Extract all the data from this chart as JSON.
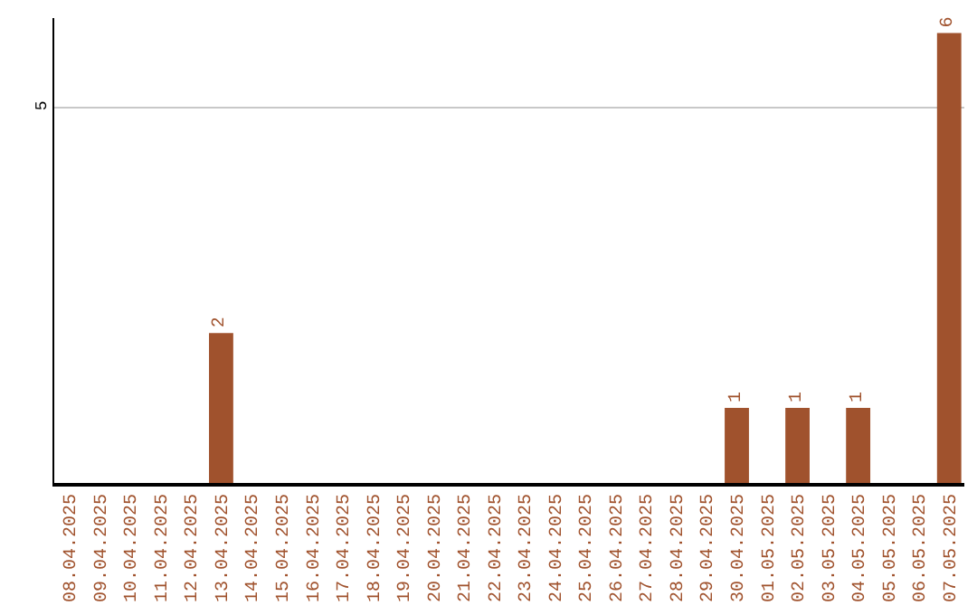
{
  "chart_data": {
    "type": "bar",
    "categories": [
      "08.04.2025",
      "09.04.2025",
      "10.04.2025",
      "11.04.2025",
      "12.04.2025",
      "13.04.2025",
      "14.04.2025",
      "15.04.2025",
      "16.04.2025",
      "17.04.2025",
      "18.04.2025",
      "19.04.2025",
      "20.04.2025",
      "21.04.2025",
      "22.04.2025",
      "23.04.2025",
      "24.04.2025",
      "25.04.2025",
      "26.04.2025",
      "27.04.2025",
      "28.04.2025",
      "29.04.2025",
      "30.04.2025",
      "01.05.2025",
      "02.05.2025",
      "03.05.2025",
      "04.05.2025",
      "05.05.2025",
      "06.05.2025",
      "07.05.2025"
    ],
    "series": [
      {
        "color": "#a0522d",
        "values": [
          0,
          0,
          0,
          0,
          0,
          2,
          0,
          0,
          0,
          0,
          0,
          0,
          0,
          0,
          0,
          0,
          0,
          0,
          0,
          0,
          0,
          0,
          1,
          0,
          1,
          0,
          1,
          0,
          0,
          6
        ],
        "value_labels": [
          null,
          null,
          null,
          null,
          null,
          "2",
          null,
          null,
          null,
          null,
          null,
          null,
          null,
          null,
          null,
          null,
          null,
          null,
          null,
          null,
          null,
          null,
          "1",
          null,
          "1",
          null,
          "1",
          null,
          null,
          "6"
        ]
      }
    ],
    "ylim": [
      0,
      6.2
    ],
    "yticks": [
      5
    ],
    "grid": "y",
    "legend": false
  }
}
